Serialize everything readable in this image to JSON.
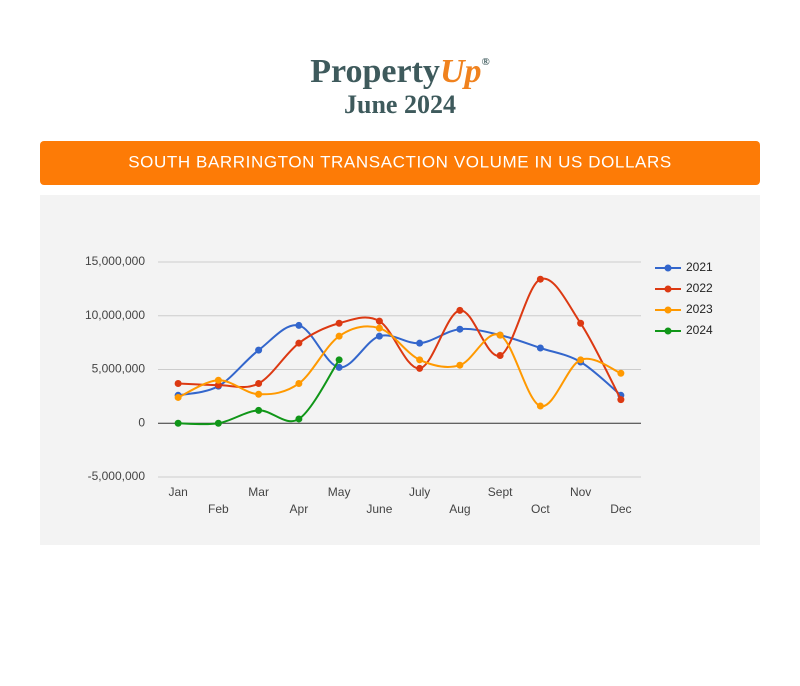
{
  "header": {
    "brand": "Property",
    "brand_accent": "Up",
    "registered": "®",
    "edition": "June 2024"
  },
  "chart_data": {
    "type": "line",
    "title": "SOUTH BARRINGTON TRANSACTION VOLUME IN US DOLLARS",
    "categories": [
      "Jan",
      "Feb",
      "Mar",
      "Apr",
      "May",
      "June",
      "July",
      "Aug",
      "Sept",
      "Oct",
      "Nov",
      "Dec"
    ],
    "series": [
      {
        "name": "2021",
        "color": "#3366cc",
        "values": [
          2600000,
          3450000,
          6800000,
          9100000,
          5200000,
          8100000,
          7450000,
          8750000,
          8200000,
          7000000,
          5700000,
          2600000
        ]
      },
      {
        "name": "2022",
        "color": "#dc3912",
        "values": [
          3700000,
          3550000,
          3700000,
          7450000,
          9300000,
          9500000,
          5100000,
          10500000,
          6300000,
          13400000,
          9300000,
          2200000
        ]
      },
      {
        "name": "2023",
        "color": "#ff9900",
        "values": [
          2400000,
          4000000,
          2700000,
          3700000,
          8100000,
          8850000,
          5900000,
          5400000,
          8200000,
          1600000,
          5900000,
          4650000
        ]
      },
      {
        "name": "2024",
        "color": "#109618",
        "values": [
          0,
          0,
          1200000,
          400000,
          5900000,
          null,
          null,
          null,
          null,
          null,
          null,
          null
        ]
      }
    ],
    "ylim": [
      -5000000,
      15000000
    ],
    "yticks": [
      {
        "value": -5000000,
        "label": "-5,000,000"
      },
      0,
      {
        "value": 5000000,
        "label": "5,000,000"
      },
      {
        "value": 10000000,
        "label": "10,000,000"
      },
      {
        "value": 15000000,
        "label": "15,000,000"
      }
    ],
    "grid": true,
    "legend": "right",
    "smooth": true
  }
}
